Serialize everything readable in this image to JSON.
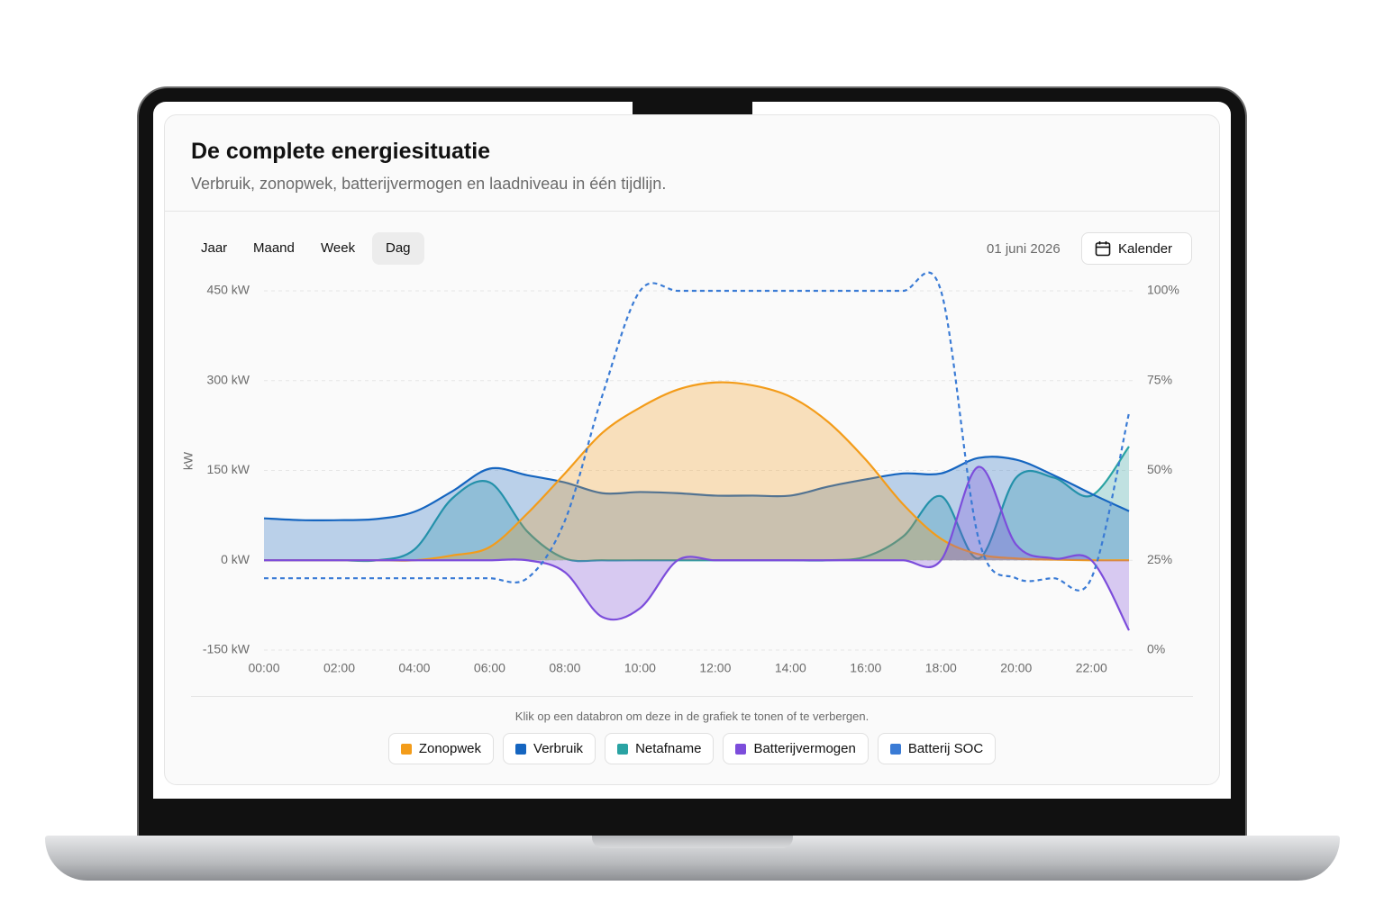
{
  "header": {
    "title": "De complete energiesituatie",
    "subtitle": "Verbruik, zonopwek, batterijvermogen en laadniveau in één tijdlijn."
  },
  "tabs": [
    "Jaar",
    "Maand",
    "Week",
    "Dag"
  ],
  "active_tab": 3,
  "date": "01 juni 2026",
  "calendar_button": "Kalender",
  "legend_hint": "Klik op een databron om deze in de grafiek te tonen of te verbergen.",
  "chart_data": {
    "type": "area",
    "y_label": "kW",
    "x": [
      0,
      1,
      2,
      3,
      4,
      5,
      6,
      7,
      8,
      9,
      10,
      11,
      12,
      13,
      14,
      15,
      16,
      17,
      18,
      19,
      20,
      21,
      22,
      23
    ],
    "xlim": [
      0,
      23
    ],
    "xticks": [
      {
        "value": 0,
        "label": "00:00"
      },
      {
        "value": 2,
        "label": "02:00"
      },
      {
        "value": 4,
        "label": "04:00"
      },
      {
        "value": 6,
        "label": "06:00"
      },
      {
        "value": 8,
        "label": "08:00"
      },
      {
        "value": 10,
        "label": "10:00"
      },
      {
        "value": 12,
        "label": "12:00"
      },
      {
        "value": 14,
        "label": "14:00"
      },
      {
        "value": 16,
        "label": "16:00"
      },
      {
        "value": 18,
        "label": "18:00"
      },
      {
        "value": 20,
        "label": "20:00"
      },
      {
        "value": 22,
        "label": "22:00"
      }
    ],
    "ylim": [
      -150,
      450
    ],
    "yticks": [
      {
        "value": -150,
        "label": "-150 kW"
      },
      {
        "value": 0,
        "label": "0 kW"
      },
      {
        "value": 150,
        "label": "150 kW"
      },
      {
        "value": 300,
        "label": "300 kW"
      },
      {
        "value": 450,
        "label": "450 kW"
      }
    ],
    "y2lim": [
      0,
      100
    ],
    "y2ticks": [
      {
        "value": 0,
        "label": "0%"
      },
      {
        "value": 25,
        "label": "25%"
      },
      {
        "value": 50,
        "label": "50%"
      },
      {
        "value": 75,
        "label": "75%"
      },
      {
        "value": 100,
        "label": "100%"
      }
    ],
    "grid": true,
    "series": [
      {
        "name": "Zonopwek",
        "color": "#f39c1a",
        "fill": true,
        "values": [
          0,
          0,
          0,
          0,
          0,
          8,
          22,
          78,
          145,
          213,
          255,
          285,
          297,
          292,
          273,
          231,
          168,
          93,
          36,
          10,
          3,
          1,
          0,
          0
        ]
      },
      {
        "name": "Verbruik",
        "color": "#1565c0",
        "fill": true,
        "values": [
          70,
          67,
          67,
          69,
          81,
          115,
          153,
          142,
          130,
          112,
          114,
          112,
          108,
          108,
          108,
          123,
          135,
          145,
          145,
          171,
          168,
          142,
          111,
          82
        ]
      },
      {
        "name": "Netafname",
        "color": "#2aa3a3",
        "fill": true,
        "values": [
          0,
          0,
          0,
          0,
          18,
          103,
          130,
          48,
          3,
          0,
          0,
          0,
          0,
          0,
          0,
          0,
          6,
          40,
          107,
          3,
          138,
          138,
          108,
          190
        ]
      },
      {
        "name": "Batterijvermogen",
        "color": "#7c4ddb",
        "fill": true,
        "values": [
          0,
          0,
          0,
          0,
          0,
          0,
          0,
          0,
          -20,
          -95,
          -80,
          0,
          0,
          0,
          0,
          0,
          0,
          0,
          0,
          156,
          26,
          3,
          0,
          -117
        ]
      },
      {
        "name": "Batterij SOC",
        "color": "#3a7bd5",
        "fill": false,
        "dashed": true,
        "axis": "y2",
        "values": [
          20,
          20,
          20,
          20,
          20,
          20,
          20,
          20,
          36,
          71,
          100,
          100,
          100,
          100,
          100,
          100,
          100,
          100,
          100,
          31,
          20,
          20,
          20,
          66
        ]
      }
    ]
  }
}
